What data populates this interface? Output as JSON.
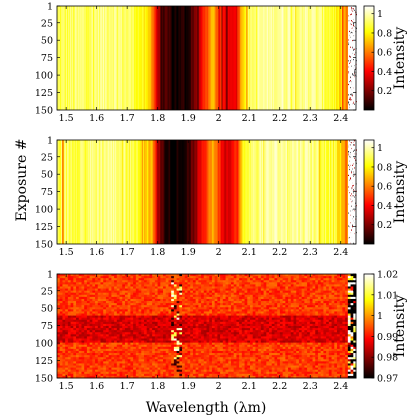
{
  "chart_data": [
    {
      "type": "heatmap",
      "xlabel": "",
      "ylabel": "",
      "colorbar_label": "Intensity",
      "colormap": "hot",
      "xlim": [
        1.47,
        2.45
      ],
      "ylim": [
        1,
        150
      ],
      "x_ticks": [
        "1.5",
        "1.6",
        "1.7",
        "1.8",
        "1.9",
        "2",
        "2.1",
        "2.2",
        "2.3",
        "2.4"
      ],
      "y_ticks": [
        "1",
        "25",
        "50",
        "75",
        "100",
        "125",
        "150"
      ],
      "colorbar_ticks": [
        "1",
        "0.8",
        "0.6",
        "0.4",
        "0.2"
      ],
      "colorbar_range": [
        0.0,
        1.08
      ],
      "spectrum": {
        "wavelength": [
          1.47,
          1.55,
          1.65,
          1.72,
          1.78,
          1.8,
          1.82,
          1.86,
          1.9,
          1.94,
          1.98,
          2.02,
          2.06,
          2.08,
          2.1,
          2.14,
          2.2,
          2.3,
          2.38,
          2.42,
          2.45
        ],
        "intensity": [
          0.88,
          0.92,
          0.96,
          0.9,
          0.7,
          0.3,
          0.1,
          0.03,
          0.05,
          0.35,
          0.7,
          0.35,
          0.45,
          0.8,
          0.92,
          0.96,
          0.98,
          0.97,
          0.85,
          0.6,
          0.5
        ]
      },
      "noise_region_start": 2.425
    },
    {
      "type": "heatmap",
      "xlabel": "",
      "ylabel": "Exposure #",
      "colorbar_label": "Intensity",
      "colormap": "hot",
      "xlim": [
        1.47,
        2.45
      ],
      "ylim": [
        1,
        150
      ],
      "x_ticks": [
        "1.5",
        "1.6",
        "1.7",
        "1.8",
        "1.9",
        "2",
        "2.1",
        "2.2",
        "2.3",
        "2.4"
      ],
      "y_ticks": [
        "1",
        "25",
        "50",
        "75",
        "100",
        "125",
        "150"
      ],
      "colorbar_ticks": [
        "1",
        "0.8",
        "0.6",
        "0.4",
        "0.2"
      ],
      "colorbar_range": [
        0.0,
        1.08
      ],
      "spectrum": {
        "wavelength": [
          1.47,
          1.55,
          1.65,
          1.72,
          1.78,
          1.8,
          1.82,
          1.86,
          1.9,
          1.94,
          1.98,
          2.02,
          2.06,
          2.08,
          2.1,
          2.14,
          2.2,
          2.3,
          2.38,
          2.42,
          2.45
        ],
        "intensity": [
          0.88,
          0.92,
          0.96,
          0.9,
          0.7,
          0.3,
          0.1,
          0.03,
          0.05,
          0.35,
          0.7,
          0.35,
          0.45,
          0.8,
          0.92,
          0.96,
          0.98,
          0.97,
          0.85,
          0.6,
          0.5
        ]
      },
      "noise_region_start": 2.425
    },
    {
      "type": "heatmap",
      "xlabel": "Wavelength (λm)",
      "ylabel": "",
      "colorbar_label": "Intensity",
      "colormap": "hot",
      "xlim": [
        1.47,
        2.45
      ],
      "ylim": [
        1,
        150
      ],
      "x_ticks": [
        "1.5",
        "1.6",
        "1.7",
        "1.8",
        "1.9",
        "2",
        "2.1",
        "2.2",
        "2.3",
        "2.4"
      ],
      "y_ticks": [
        "1",
        "25",
        "50",
        "75",
        "100",
        "125",
        "150"
      ],
      "colorbar_ticks": [
        "1.02",
        "1.01",
        "1",
        "0.99",
        "0.98",
        "0.97"
      ],
      "colorbar_range": [
        0.97,
        1.02
      ],
      "ratio_levels": {
        "exposures_1_to_60": 0.993,
        "exposures_61_to_100": 0.986,
        "exposures_101_to_150": 0.993,
        "noisy_band_wavelengths": [
          1.84,
          1.88
        ],
        "noise_region_start": 2.425
      }
    }
  ]
}
